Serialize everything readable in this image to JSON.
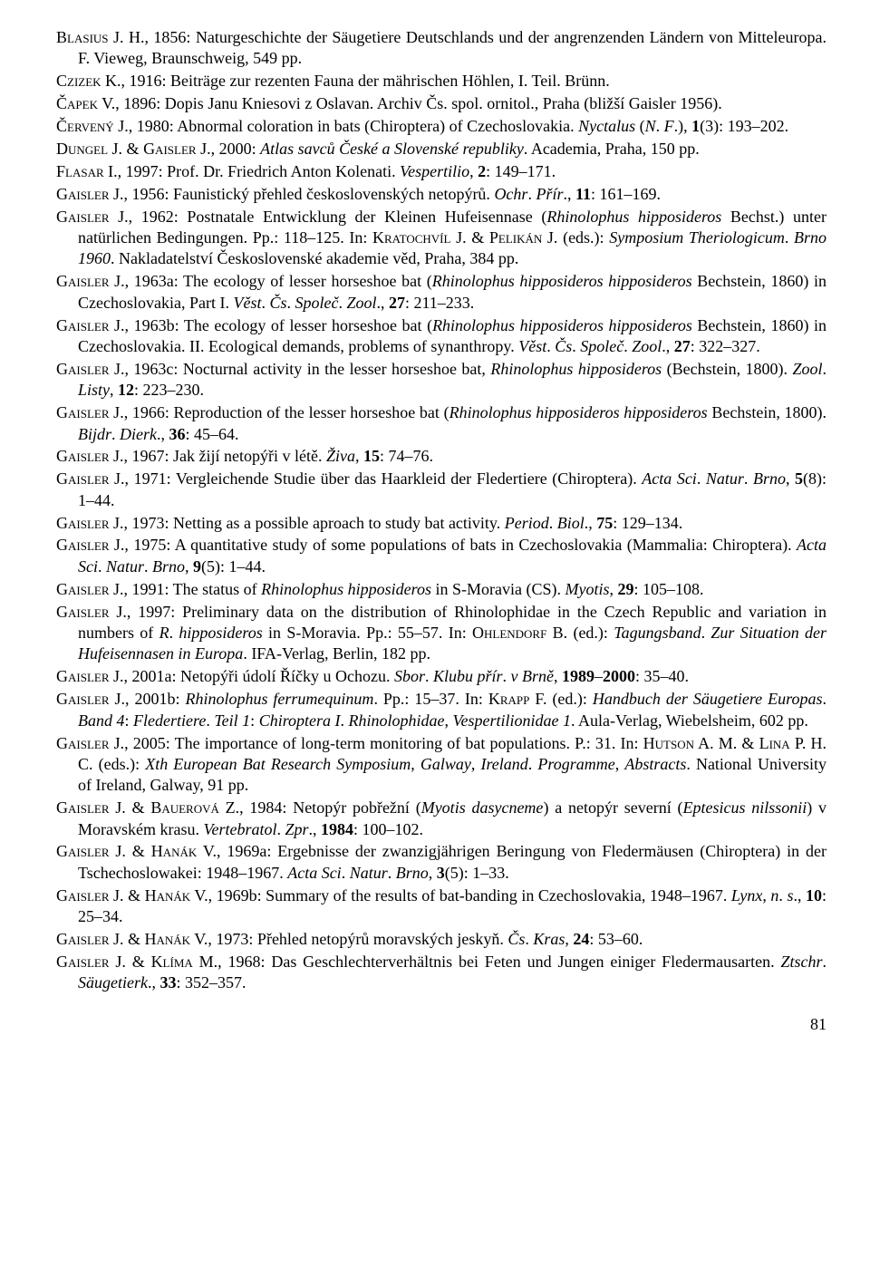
{
  "refs": [
    "<span class='sc'>Blasius</span> J. H., 1856: Naturgeschichte der Säugetiere Deutschlands und der angrenzenden Ländern von Mitteleuropa. F. Vieweg, Braunschweig, 549 pp.",
    "<span class='sc'>Czizek</span> K., 1916: Beiträge zur rezenten Fauna der mährischen Höhlen, I. Teil. Brünn.",
    "<span class='sc'>Čapek</span> V., 1896: Dopis Janu Kniesovi z Oslavan. Archiv Čs. spol. ornitol., Praha (bližší Gaisler 1956).",
    "<span class='sc'>Červený</span> J., 1980: Abnormal coloration in bats (Chiroptera) of Czechoslovakia. <i>Nyctalus</i> (<i>N</i>. <i>F</i>.), <b>1</b>(3): 193–202.",
    "<span class='sc'>Dungel</span> J. &amp; <span class='sc'>Gaisler</span> J., 2000: <i>Atlas savců České a Slovenské republiky</i>. Academia, Praha, 150 pp.",
    "<span class='sc'>Flasar</span> I., 1997: Prof. Dr. Friedrich Anton Kolenati. <i>Vespertilio</i>, <b>2</b>: 149–171.",
    "<span class='sc'>Gaisler</span> J., 1956: Faunistický přehled československých netopýrů. <i>Ochr</i>. <i>Přír</i>., <b>11</b>: 161–169.",
    "<span class='sc'>Gaisler</span> J., 1962: Postnatale Entwicklung der Kleinen Hufeisennase (<i>Rhinolophus hipposideros</i> Bechst.) unter natürlichen Bedingungen. Pp.: 118–125. In: <span class='sc'>Kratochvíl</span> J. &amp; <span class='sc'>Pelikán</span> J. (eds.): <i>Symposium Theriologicum</i>. <i>Brno 1960</i>. Nakladatelství Československé akademie věd, Praha, 384 pp.",
    "<span class='sc'>Gaisler</span> J., 1963a: The ecology of lesser horseshoe bat (<i>Rhinolophus hipposideros hipposideros</i> Bechstein, 1860) in Czechoslovakia, Part I. <i>Věst</i>. <i>Čs</i>. <i>Společ</i>. <i>Zool</i>., <b>27</b>: 211–233.",
    "<span class='sc'>Gaisler</span> J., 1963b: The ecology of lesser horseshoe bat (<i>Rhinolophus hipposideros hipposideros</i> Bechstein, 1860) in Czechoslovakia. II. Ecological demands, problems of synanthropy. <i>Věst</i>. <i>Čs</i>. <i>Společ</i>. <i>Zool</i>., <b>27</b>: 322–327.",
    "<span class='sc'>Gaisler</span> J., 1963c: Nocturnal activity in the lesser horseshoe bat, <i>Rhinolophus hipposideros</i> (Bechstein, 1800). <i>Zool</i>. <i>Listy</i>, <b>12</b>: 223–230.",
    "<span class='sc'>Gaisler</span> J., 1966: Reproduction of the lesser horseshoe bat (<i>Rhinolophus hipposideros hipposideros</i> Bech­stein, 1800). <i>Bijdr</i>. <i>Dierk</i>., <b>36</b>: 45–64.",
    "<span class='sc'>Gaisler</span> J., 1967: Jak žijí netopýři v létě. <i>Živa</i>, <b>15</b>: 74–76.",
    "<span class='sc'>Gaisler</span> J., 1971: Vergleichende Studie über das Haarkleid der Fledertiere (Chiroptera). <i>Acta Sci</i>. <i>Natur</i>. <i>Brno</i>, <b>5</b>(8): 1–44.",
    "<span class='sc'>Gaisler</span> J., 1973: Netting as a possible aproach to study bat activity. <i>Period</i>. <i>Biol</i>., <b>75</b>: 129–134.",
    "<span class='sc'>Gaisler</span> J., 1975: A quantitative study of some populations of bats in Czechoslovakia (Mammalia: Chiro­ptera). <i>Acta Sci</i>. <i>Natur</i>. <i>Brno</i>, <b>9</b>(5): 1–44.",
    "<span class='sc'>Gaisler</span> J., 1991: The status of <i>Rhinolophus hipposideros</i> in S-Moravia (CS). <i>Myotis</i>, <b>29</b>: 105–108.",
    "<span class='sc'>Gaisler</span> J., 1997: Preliminary data on the distribution of Rhinolophidae in the Czech Republic and variation in numbers of <i>R</i>. <i>hipposideros</i> in S-Moravia. Pp.: 55–57. In: <span class='sc'>Ohlendorf</span> B. (ed.): <i>Tagungsband</i>. <i>Zur Si­tuation der Hufeisennasen in Europa</i>. IFA-Verlag, Berlin, 182 pp.",
    "<span class='sc'>Gaisler</span> J., 2001a: Netopýři údolí Říčky u Ochozu. <i>Sbor</i>. <i>Klubu přír</i>. <i>v Brně</i>, <b>1989</b>–<b>2000</b>: 35–40.",
    "<span class='sc'>Gaisler</span> J., 2001b: <i>Rhinolophus ferrumequinum</i>. Pp.: 15–37. In: <span class='sc'>Krapp</span> F. (ed.): <i>Handbuch der Säugetiere Europas</i>. <i>Band 4</i>: <i>Fledertiere</i>. <i>Teil 1</i>: <i>Chiroptera I</i>. <i>Rhinolophidae</i>, <i>Vespertilionidae 1</i>. Aula-Verlag, Wiebelsheim, 602 pp.",
    "<span class='sc'>Gaisler</span> J., 2005: The importance of long-term monitoring of bat populations. P.: 31. In: <span class='sc'>Hutson</span> A. M. &amp; <span class='sc'>Lina</span> P. H. C. (eds.): <i>Xth European Bat Research Symposium</i>, <i>Galway</i>, <i>Ireland</i>. <i>Programme</i>, <i>Abstracts</i>. National University of Ireland, Galway, 91 pp.",
    "<span class='sc'>Gaisler</span> J. &amp; <span class='sc'>Bauerová</span> Z., 1984: Netopýr pobřežní (<i>Myotis dasycneme</i>) a netopýr severní (<i>Eptesicus nils­sonii</i>) v Moravském krasu. <i>Vertebratol</i>. <i>Zpr</i>., <b>1984</b>: 100–102.",
    "<span class='sc'>Gaisler</span> J. &amp; <span class='sc'>Hanák</span> V., 1969a: Ergebnisse der zwanzigjährigen Beringung von Fledermäusen (Chiroptera) in der Tschechoslowakei: 1948–1967. <i>Acta Sci</i>. <i>Natur</i>. <i>Brno</i>, <b>3</b>(5): 1–33.",
    "<span class='sc'>Gaisler</span> J. &amp; <span class='sc'>Hanák</span> V., 1969b: Summary of the results of bat-banding in Czechoslovakia, 1948–1967. <i>Lynx</i>, <i>n</i>. <i>s</i>., <b>10</b>: 25–34.",
    "<span class='sc'>Gaisler</span> J. &amp; <span class='sc'>Hanák</span> V., 1973: Přehled netopýrů moravských jeskyň. <i>Čs</i>. <i>Kras</i>, <b>24</b>: 53–60.",
    "<span class='sc'>Gaisler</span> J. &amp; <span class='sc'>Klíma</span> M., 1968: Das Geschlechterverhältnis bei Feten und Jungen einiger Fledermausarten. <i>Ztschr</i>. <i>Säugetierk</i>., <b>33</b>: 352–357."
  ],
  "page_number": "81"
}
